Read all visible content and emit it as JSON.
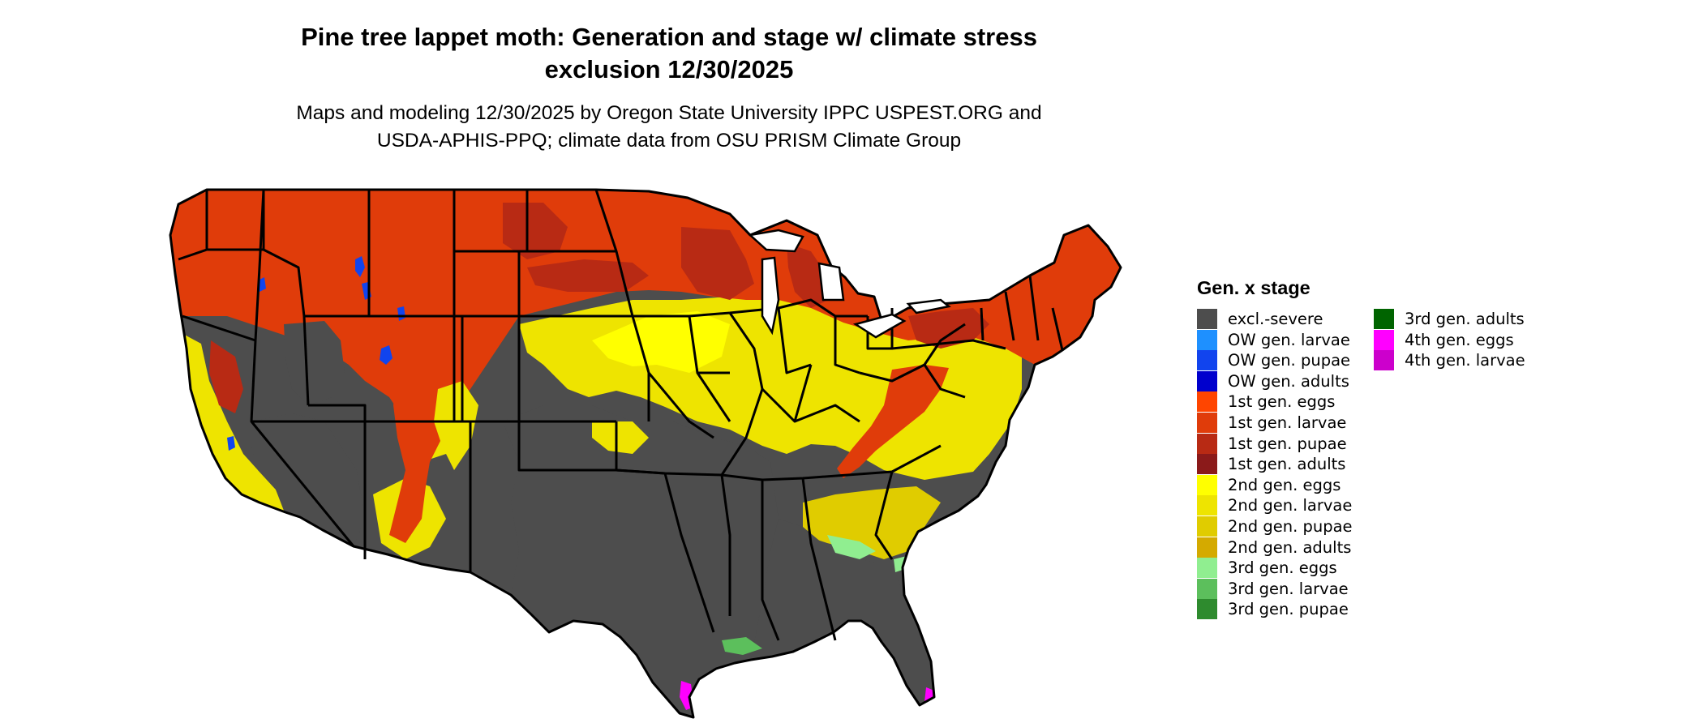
{
  "title_line1": "Pine tree lappet moth: Generation and stage w/ climate stress",
  "title_line2": "exclusion 12/30/2025",
  "subtitle_line1": "Maps and modeling 12/30/2025 by Oregon State University IPPC USPEST.ORG and",
  "subtitle_line2": "USDA-APHIS-PPQ; climate data from OSU PRISM Climate Group",
  "legend": {
    "title": "Gen. x stage",
    "items": [
      {
        "label": "excl.-severe",
        "color": "#4d4d4d"
      },
      {
        "label": "OW gen. larvae",
        "color": "#1e90ff"
      },
      {
        "label": "OW gen. pupae",
        "color": "#1144ee"
      },
      {
        "label": "OW gen. adults",
        "color": "#0000cd"
      },
      {
        "label": "1st gen. eggs",
        "color": "#ff4500"
      },
      {
        "label": "1st gen. larvae",
        "color": "#e03c0a"
      },
      {
        "label": "1st gen. pupae",
        "color": "#b82a14"
      },
      {
        "label": "1st gen. adults",
        "color": "#8b1a1a"
      },
      {
        "label": "2nd gen. eggs",
        "color": "#ffff00"
      },
      {
        "label": "2nd gen. larvae",
        "color": "#eee400"
      },
      {
        "label": "2nd gen. pupae",
        "color": "#e0cc00"
      },
      {
        "label": "2nd gen. adults",
        "color": "#d4aa00"
      },
      {
        "label": "3rd gen. eggs",
        "color": "#90ee90"
      },
      {
        "label": "3rd gen. larvae",
        "color": "#5cbf5c"
      },
      {
        "label": "3rd gen. pupae",
        "color": "#2e8b2e"
      },
      {
        "label": "3rd gen. adults",
        "color": "#006400"
      },
      {
        "label": "4th gen. eggs",
        "color": "#ff00ff"
      },
      {
        "label": "4th gen. larvae",
        "color": "#cc00cc"
      }
    ]
  }
}
